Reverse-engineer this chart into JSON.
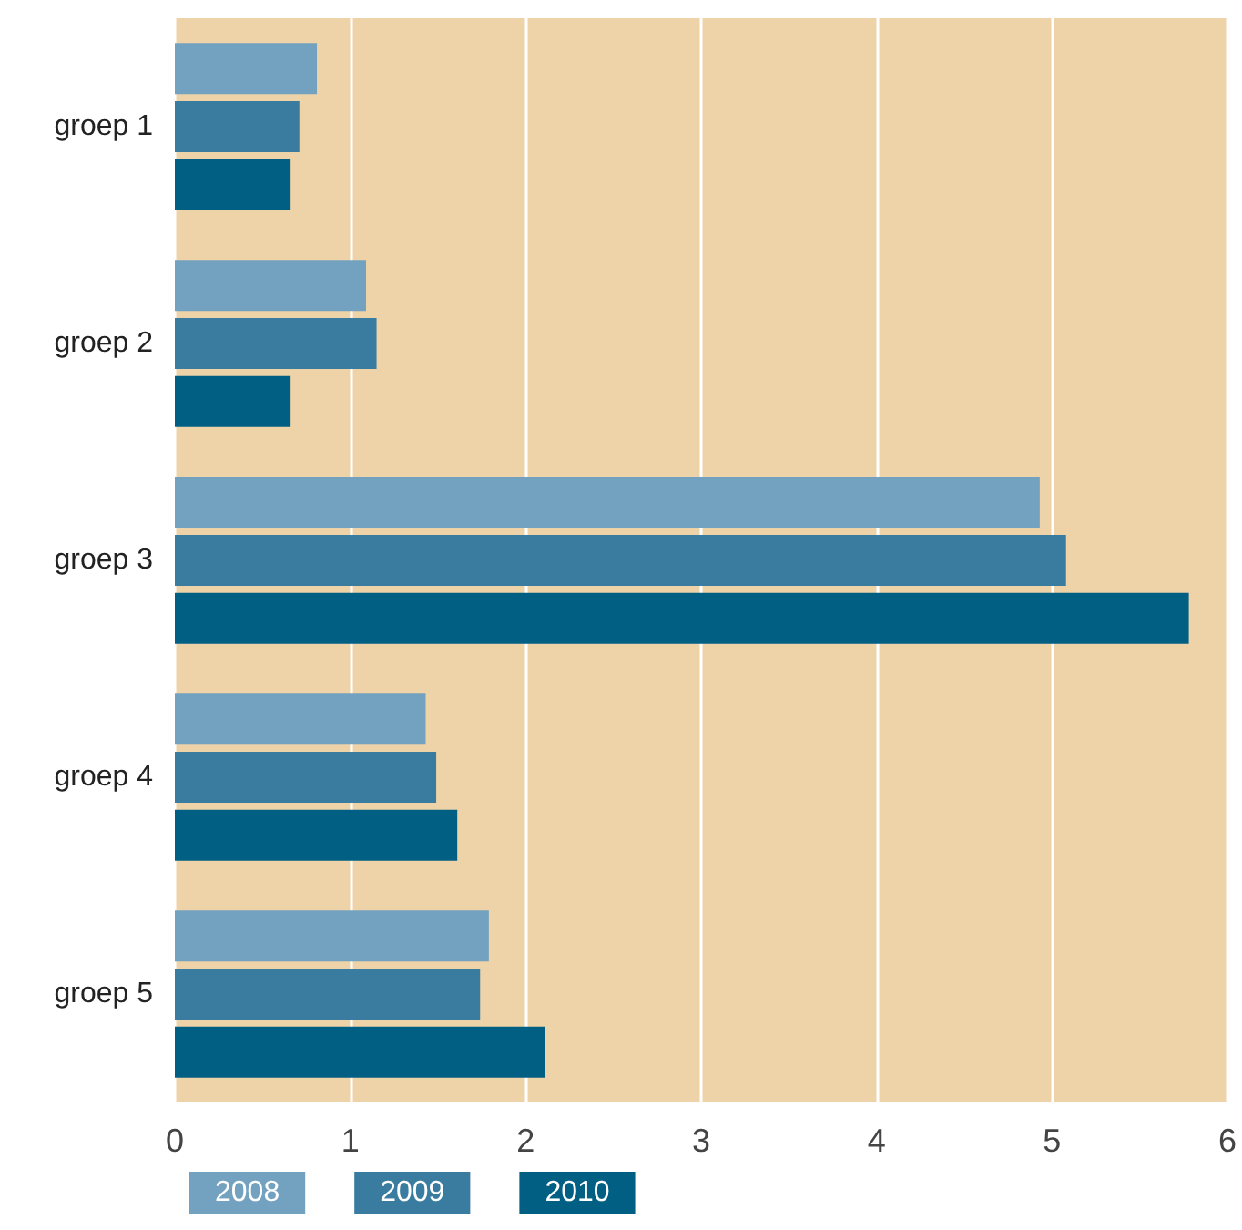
{
  "chart_data": {
    "type": "bar",
    "orientation": "horizontal",
    "categories": [
      "groep 1",
      "groep 2",
      "groep 3",
      "groep 4",
      "groep 5"
    ],
    "series": [
      {
        "name": "2008",
        "color": "#73a1c0",
        "values": [
          0.81,
          1.09,
          4.93,
          1.43,
          1.79
        ]
      },
      {
        "name": "2009",
        "color": "#3a7ca0",
        "values": [
          0.71,
          1.15,
          5.08,
          1.49,
          1.74
        ]
      },
      {
        "name": "2010",
        "color": "#005f83",
        "values": [
          0.66,
          0.66,
          5.78,
          1.61,
          2.11
        ]
      }
    ],
    "xlim": [
      0,
      6
    ],
    "xticks": [
      0,
      1,
      2,
      3,
      4,
      5,
      6
    ],
    "grid": "x",
    "legend": "bottom left"
  }
}
